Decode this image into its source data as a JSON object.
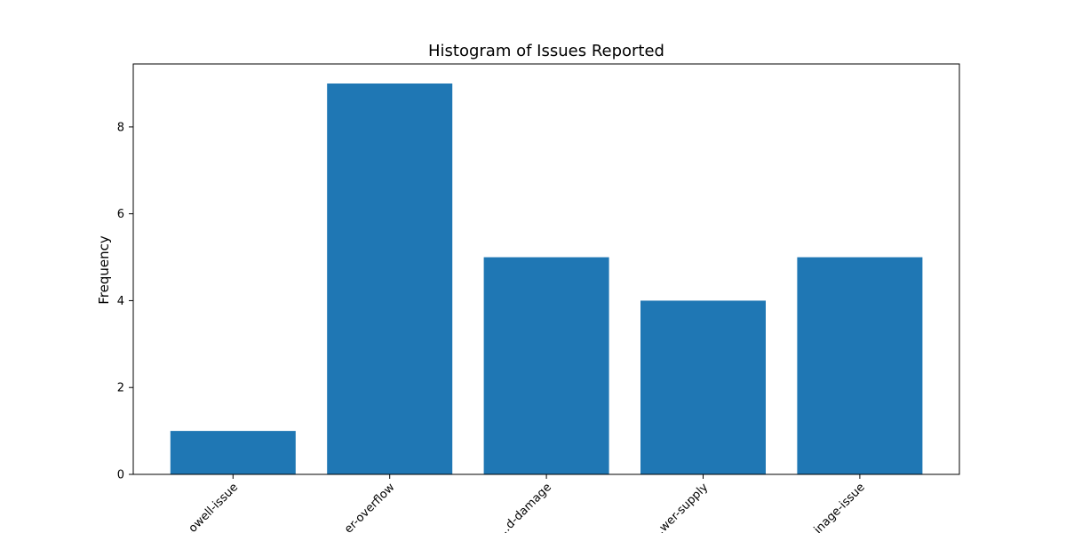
{
  "chart_data": {
    "type": "bar",
    "title": "Histogram of Issues Reported",
    "xlabel": "",
    "ylabel": "Frequency",
    "categories": [
      "…owell-issue",
      "…er-overflow",
      "…d-damage",
      "…wer-supply",
      "…inage-issue"
    ],
    "values": [
      1,
      9,
      5,
      4,
      5
    ],
    "ylim": [
      0,
      9.45
    ],
    "yticks": [
      0,
      2,
      4,
      6,
      8
    ],
    "grid": false,
    "legend": "none",
    "bar_color": "#1f77b4"
  }
}
